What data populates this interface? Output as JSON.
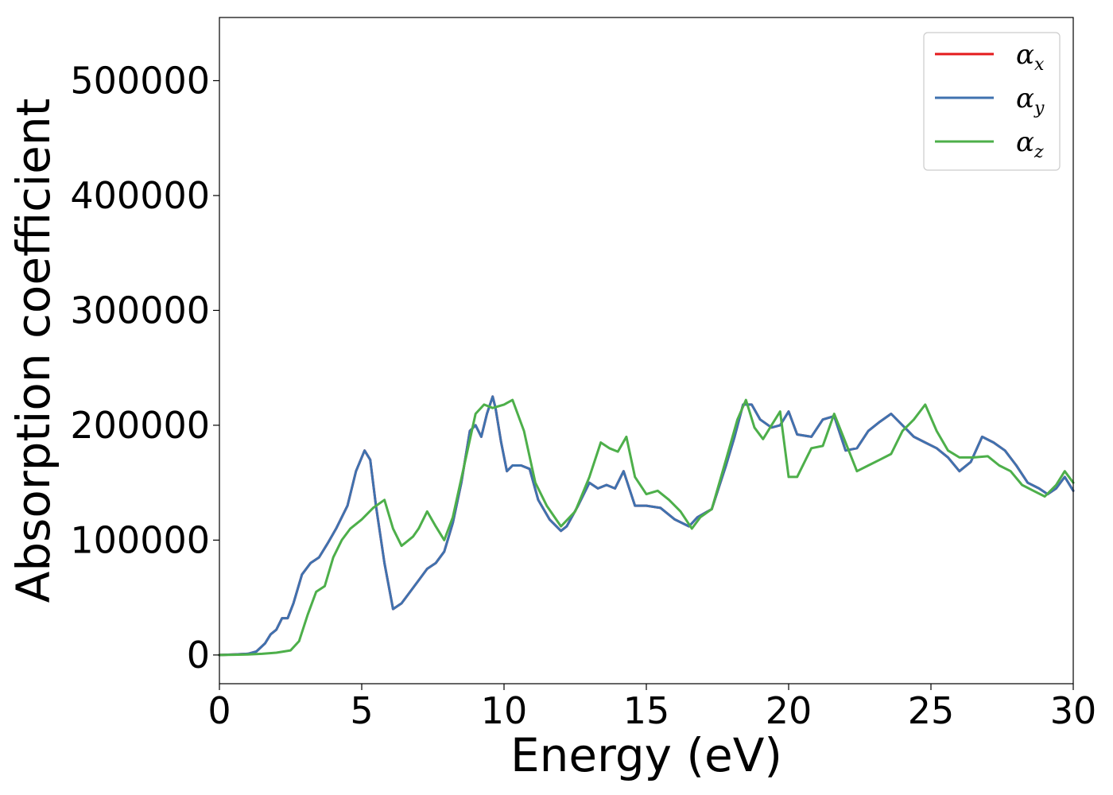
{
  "chart_data": {
    "type": "line",
    "xlabel": "Energy (eV)",
    "ylabel": "Absorption coefficient",
    "xlim": [
      0,
      30
    ],
    "ylim": [
      -25000,
      555000
    ],
    "x_ticks": [
      0,
      5,
      10,
      15,
      20,
      25,
      30
    ],
    "y_ticks": [
      0,
      100000,
      200000,
      300000,
      400000,
      500000
    ],
    "x_tick_labels": [
      "0",
      "5",
      "10",
      "15",
      "20",
      "25",
      "30"
    ],
    "y_tick_labels": [
      "0",
      "100000",
      "200000",
      "300000",
      "400000",
      "500000"
    ],
    "grid": false,
    "legend_position": "upper-right",
    "series": [
      {
        "name": "αx",
        "name_base": "α",
        "name_sub": "x",
        "color": "#e41a1c",
        "x": [
          0,
          0.5,
          1,
          1.3,
          1.6,
          1.8,
          2,
          2.2,
          2.4,
          2.6,
          2.9,
          3.2,
          3.5,
          3.8,
          4.1,
          4.5,
          4.8,
          5.1,
          5.3,
          5.5,
          5.8,
          6.1,
          6.4,
          6.7,
          7.0,
          7.3,
          7.6,
          7.9,
          8.2,
          8.5,
          8.8,
          9.0,
          9.2,
          9.4,
          9.6,
          9.7,
          9.9,
          10.1,
          10.3,
          10.6,
          10.9,
          11.2,
          11.6,
          12.0,
          12.2,
          12.6,
          13.0,
          13.3,
          13.6,
          13.9,
          14.2,
          14.6,
          15.0,
          15.5,
          16.0,
          16.5,
          16.8,
          17.3,
          17.8,
          18.1,
          18.4,
          18.7,
          19.0,
          19.4,
          19.7,
          20.0,
          20.3,
          20.8,
          21.2,
          21.6,
          22.0,
          22.4,
          22.8,
          23.2,
          23.6,
          24.0,
          24.4,
          24.8,
          25.2,
          25.6,
          26.0,
          26.4,
          26.8,
          27.2,
          27.6,
          28.0,
          28.4,
          28.8,
          29.1,
          29.4,
          29.7,
          30.0
        ],
        "y": [
          0,
          500,
          1000,
          3000,
          10000,
          18000,
          22000,
          32000,
          32000,
          45000,
          70000,
          80000,
          85000,
          97000,
          110000,
          130000,
          160000,
          178000,
          170000,
          130000,
          80000,
          40000,
          45000,
          55000,
          65000,
          75000,
          80000,
          90000,
          115000,
          150000,
          195000,
          200000,
          190000,
          210000,
          225000,
          215000,
          185000,
          160000,
          165000,
          165000,
          162000,
          135000,
          118000,
          108000,
          112000,
          130000,
          150000,
          145000,
          148000,
          145000,
          160000,
          130000,
          130000,
          128000,
          118000,
          112000,
          120000,
          127000,
          165000,
          190000,
          218000,
          218000,
          205000,
          198000,
          200000,
          212000,
          192000,
          190000,
          205000,
          208000,
          178000,
          180000,
          195000,
          203000,
          210000,
          200000,
          190000,
          185000,
          180000,
          172000,
          160000,
          168000,
          190000,
          185000,
          178000,
          165000,
          150000,
          145000,
          140000,
          145000,
          155000,
          143000
        ]
      },
      {
        "name": "αy",
        "name_base": "α",
        "name_sub": "y",
        "color": "#3f72af",
        "x": [
          0,
          0.5,
          1,
          1.3,
          1.6,
          1.8,
          2,
          2.2,
          2.4,
          2.6,
          2.9,
          3.2,
          3.5,
          3.8,
          4.1,
          4.5,
          4.8,
          5.1,
          5.3,
          5.5,
          5.8,
          6.1,
          6.4,
          6.7,
          7.0,
          7.3,
          7.6,
          7.9,
          8.2,
          8.5,
          8.8,
          9.0,
          9.2,
          9.4,
          9.6,
          9.7,
          9.9,
          10.1,
          10.3,
          10.6,
          10.9,
          11.2,
          11.6,
          12.0,
          12.2,
          12.6,
          13.0,
          13.3,
          13.6,
          13.9,
          14.2,
          14.6,
          15.0,
          15.5,
          16.0,
          16.5,
          16.8,
          17.3,
          17.8,
          18.1,
          18.4,
          18.7,
          19.0,
          19.4,
          19.7,
          20.0,
          20.3,
          20.8,
          21.2,
          21.6,
          22.0,
          22.4,
          22.8,
          23.2,
          23.6,
          24.0,
          24.4,
          24.8,
          25.2,
          25.6,
          26.0,
          26.4,
          26.8,
          27.2,
          27.6,
          28.0,
          28.4,
          28.8,
          29.1,
          29.4,
          29.7,
          30.0
        ],
        "y": [
          0,
          500,
          1000,
          3000,
          10000,
          18000,
          22000,
          32000,
          32000,
          45000,
          70000,
          80000,
          85000,
          97000,
          110000,
          130000,
          160000,
          178000,
          170000,
          130000,
          80000,
          40000,
          45000,
          55000,
          65000,
          75000,
          80000,
          90000,
          115000,
          150000,
          195000,
          200000,
          190000,
          210000,
          225000,
          215000,
          185000,
          160000,
          165000,
          165000,
          162000,
          135000,
          118000,
          108000,
          112000,
          130000,
          150000,
          145000,
          148000,
          145000,
          160000,
          130000,
          130000,
          128000,
          118000,
          112000,
          120000,
          127000,
          165000,
          190000,
          218000,
          218000,
          205000,
          198000,
          200000,
          212000,
          192000,
          190000,
          205000,
          208000,
          178000,
          180000,
          195000,
          203000,
          210000,
          200000,
          190000,
          185000,
          180000,
          172000,
          160000,
          168000,
          190000,
          185000,
          178000,
          165000,
          150000,
          145000,
          140000,
          145000,
          155000,
          143000
        ]
      },
      {
        "name": "αz",
        "name_base": "α",
        "name_sub": "z",
        "color": "#4daf4a",
        "x": [
          0,
          0.5,
          1,
          1.5,
          2,
          2.5,
          2.8,
          3.1,
          3.4,
          3.7,
          4.0,
          4.3,
          4.6,
          5.0,
          5.4,
          5.8,
          6.1,
          6.4,
          6.8,
          7.0,
          7.3,
          7.6,
          7.9,
          8.2,
          8.6,
          9.0,
          9.3,
          9.6,
          10.0,
          10.3,
          10.7,
          11.1,
          11.5,
          12.0,
          12.5,
          13.0,
          13.4,
          13.7,
          14.0,
          14.3,
          14.6,
          15.0,
          15.4,
          15.8,
          16.2,
          16.6,
          16.9,
          17.3,
          17.8,
          18.2,
          18.5,
          18.8,
          19.1,
          19.4,
          19.7,
          20.0,
          20.3,
          20.8,
          21.2,
          21.6,
          22.0,
          22.4,
          22.8,
          23.2,
          23.6,
          24.0,
          24.4,
          24.8,
          25.2,
          25.6,
          26.0,
          26.5,
          27.0,
          27.4,
          27.8,
          28.2,
          28.6,
          29.0,
          29.4,
          29.7,
          30.0
        ],
        "y": [
          0,
          200,
          500,
          1000,
          2000,
          4000,
          12000,
          35000,
          55000,
          60000,
          85000,
          100000,
          110000,
          118000,
          128000,
          135000,
          110000,
          95000,
          103000,
          110000,
          125000,
          112000,
          100000,
          120000,
          165000,
          210000,
          218000,
          215000,
          218000,
          222000,
          195000,
          150000,
          130000,
          112000,
          125000,
          155000,
          185000,
          180000,
          177000,
          190000,
          155000,
          140000,
          143000,
          135000,
          125000,
          110000,
          120000,
          127000,
          170000,
          205000,
          222000,
          198000,
          188000,
          200000,
          212000,
          155000,
          155000,
          180000,
          182000,
          210000,
          185000,
          160000,
          165000,
          170000,
          175000,
          195000,
          205000,
          218000,
          195000,
          178000,
          172000,
          172000,
          173000,
          165000,
          160000,
          148000,
          143000,
          138000,
          148000,
          160000,
          150000
        ]
      }
    ]
  }
}
